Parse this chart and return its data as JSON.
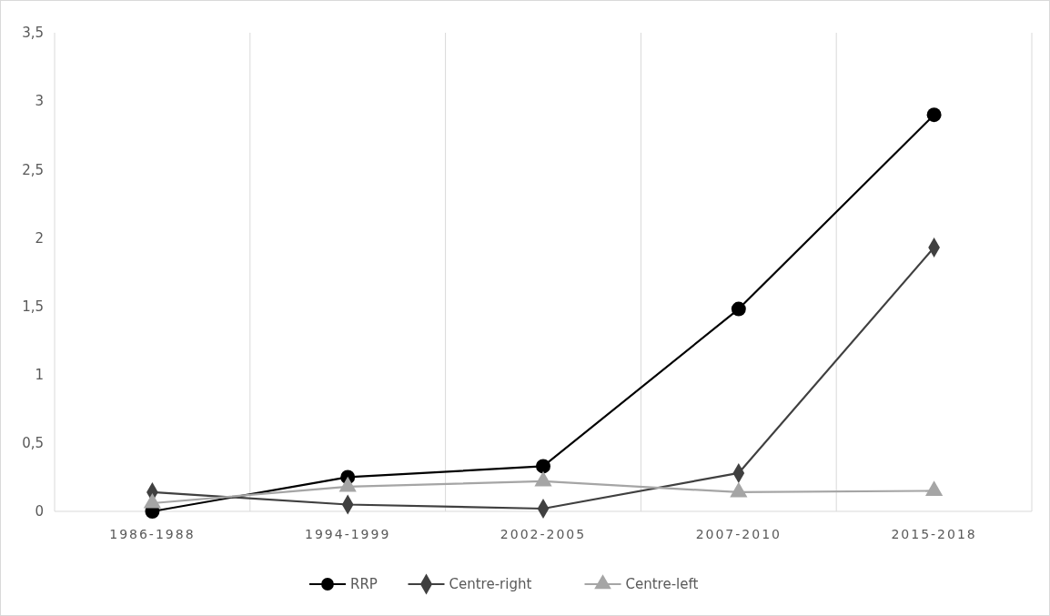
{
  "chart_data": {
    "type": "line",
    "categories": [
      "1986-1988",
      "1994-1999",
      "2002-2005",
      "2007-2010",
      "2015-2018"
    ],
    "series": [
      {
        "name": "RRP",
        "color": "#000000",
        "marker": "circle",
        "values": [
          0,
          0.25,
          0.33,
          1.48,
          2.9
        ]
      },
      {
        "name": "Centre-right",
        "color": "#404040",
        "marker": "diamond",
        "values": [
          0.14,
          0.05,
          0.02,
          0.28,
          1.93
        ]
      },
      {
        "name": "Centre-left",
        "color": "#a5a5a5",
        "marker": "triangle",
        "values": [
          0.06,
          0.18,
          0.22,
          0.14,
          0.15
        ]
      }
    ],
    "ylim": [
      0,
      3.5
    ],
    "yticks": [
      {
        "value": 0,
        "label": "0"
      },
      {
        "value": 0.5,
        "label": "0,5"
      },
      {
        "value": 1,
        "label": "1"
      },
      {
        "value": 1.5,
        "label": "1,5"
      },
      {
        "value": 2,
        "label": "2"
      },
      {
        "value": 2.5,
        "label": "2,5"
      },
      {
        "value": 3,
        "label": "3"
      },
      {
        "value": 3.5,
        "label": "3,5"
      }
    ],
    "grid": "x",
    "legend": "bottom",
    "line_style": "solid"
  }
}
